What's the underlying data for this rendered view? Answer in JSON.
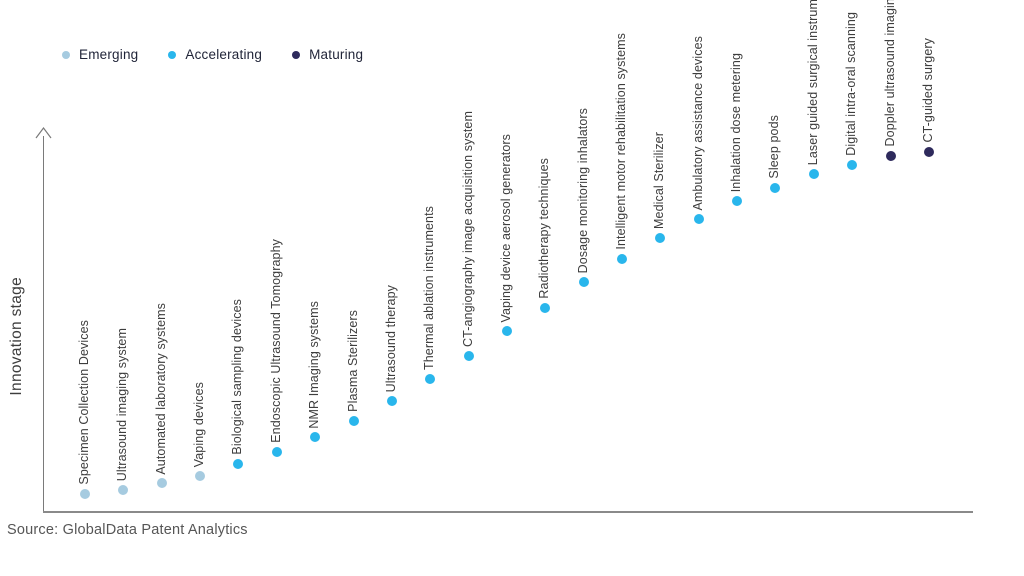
{
  "legend": {
    "items": [
      {
        "label": "Emerging",
        "color": "#a6cbe0"
      },
      {
        "label": "Accelerating",
        "color": "#29b6ec"
      },
      {
        "label": "Maturing",
        "color": "#2e2a5c"
      }
    ]
  },
  "source_note": "Source: GlobalData Patent Analytics",
  "chart_data": {
    "type": "scatter",
    "title": "",
    "xlabel": "",
    "ylabel": "Innovation stage",
    "ylim": [
      0,
      100
    ],
    "grid": false,
    "axis_ticks": "none",
    "legend_position": "top-left",
    "stage_colors": {
      "Emerging": "#a6cbe0",
      "Accelerating": "#29b6ec",
      "Maturing": "#2e2a5c"
    },
    "points": [
      {
        "label": "Specimen Collection Devices",
        "stage": "Emerging",
        "value": 4.6
      },
      {
        "label": "Ultrasound imaging system",
        "stage": "Emerging",
        "value": 5.7
      },
      {
        "label": "Automated laboratory systems",
        "stage": "Emerging",
        "value": 7.5
      },
      {
        "label": "Vaping devices",
        "stage": "Emerging",
        "value": 9.4
      },
      {
        "label": "Biological sampling devices",
        "stage": "Accelerating",
        "value": 12.7
      },
      {
        "label": "Endoscopic Ultrasound Tomography",
        "stage": "Accelerating",
        "value": 15.9
      },
      {
        "label": "NMR Imaging systems",
        "stage": "Accelerating",
        "value": 19.9
      },
      {
        "label": "Plasma Sterilizers",
        "stage": "Accelerating",
        "value": 24.3
      },
      {
        "label": "Ultrasound therapy",
        "stage": "Accelerating",
        "value": 29.6
      },
      {
        "label": "Thermal ablation instruments",
        "stage": "Accelerating",
        "value": 35.6
      },
      {
        "label": "CT-angiography image acquisition system",
        "stage": "Accelerating",
        "value": 41.8
      },
      {
        "label": "Vaping device aerosol generators",
        "stage": "Accelerating",
        "value": 48.5
      },
      {
        "label": "Radiotherapy techniques",
        "stage": "Accelerating",
        "value": 54.7
      },
      {
        "label": "Dosage monitoring inhalators",
        "stage": "Accelerating",
        "value": 61.7
      },
      {
        "label": "Intelligent motor rehabilitation systems",
        "stage": "Accelerating",
        "value": 67.9
      },
      {
        "label": "Medical Sterilizer",
        "stage": "Accelerating",
        "value": 73.6
      },
      {
        "label": "Ambulatory assistance devices",
        "stage": "Accelerating",
        "value": 78.7
      },
      {
        "label": "Inhalation dose metering",
        "stage": "Accelerating",
        "value": 83.6
      },
      {
        "label": "Sleep pods",
        "stage": "Accelerating",
        "value": 87.1
      },
      {
        "label": "Laser guided surgical instruments",
        "stage": "Accelerating",
        "value": 90.8
      },
      {
        "label": "Digital intra-oral scanning",
        "stage": "Accelerating",
        "value": 93.3
      },
      {
        "label": "Doppler ultrasound imaging",
        "stage": "Maturing",
        "value": 95.7
      },
      {
        "label": "CT-guided surgery",
        "stage": "Maturing",
        "value": 96.8
      }
    ]
  }
}
